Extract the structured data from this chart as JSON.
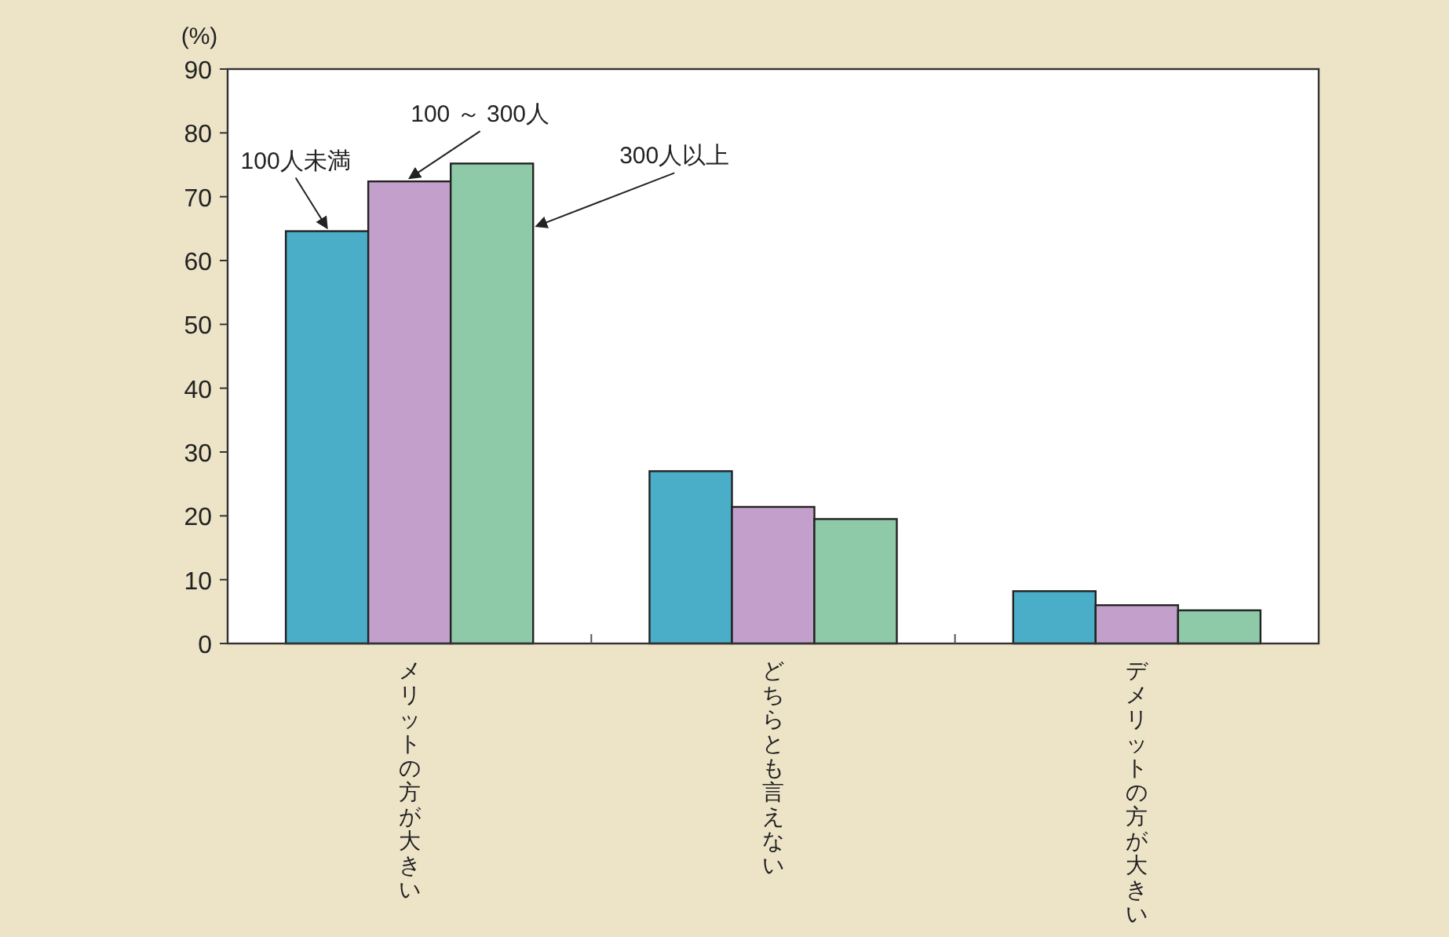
{
  "chart_data": {
    "type": "bar",
    "ylabel": "(%)",
    "categories": [
      "メリットの方が大きい",
      "どちらとも言えない",
      "デメリットの方が大きい"
    ],
    "series": [
      {
        "name": "100人未満",
        "color": "#4aaec8",
        "values": [
          64.6,
          27.0,
          8.2
        ]
      },
      {
        "name": "100 ～ 300人",
        "color": "#c3a0cb",
        "values": [
          72.4,
          21.4,
          6.0
        ]
      },
      {
        "name": "300人以上",
        "color": "#8fcaa8",
        "values": [
          75.2,
          19.5,
          5.2
        ]
      }
    ],
    "ylim": [
      0,
      90
    ],
    "yticks": [
      0,
      10,
      20,
      30,
      40,
      50,
      60,
      70,
      80,
      90
    ],
    "grid": false,
    "legend": false
  }
}
